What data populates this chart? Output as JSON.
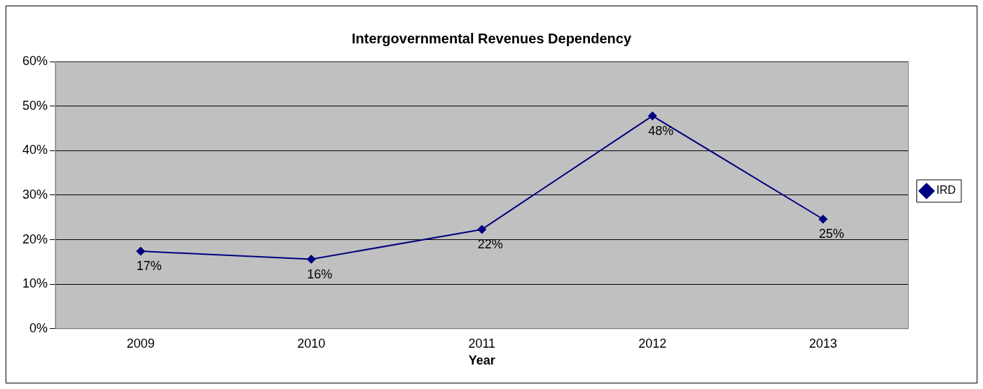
{
  "chart_data": {
    "type": "line",
    "title": "Intergovernmental Revenues Dependency",
    "xlabel": "Year",
    "categories": [
      "2009",
      "2010",
      "2011",
      "2012",
      "2013"
    ],
    "series": [
      {
        "name": "IRD",
        "color": "#000080",
        "values": [
          17.4,
          15.6,
          22.3,
          47.8,
          24.6
        ],
        "value_labels": [
          "17%",
          "16%",
          "22%",
          "48%",
          "25%"
        ]
      }
    ],
    "ylim": [
      0,
      60
    ],
    "yticks": [
      {
        "value": 0,
        "label": "0%"
      },
      {
        "value": 10,
        "label": "10%"
      },
      {
        "value": 20,
        "label": "20%"
      },
      {
        "value": 30,
        "label": "30%"
      },
      {
        "value": 40,
        "label": "40%"
      },
      {
        "value": 50,
        "label": "50%"
      },
      {
        "value": 60,
        "label": "60%"
      }
    ],
    "grid": "y",
    "legend": "right",
    "marker": "diamond",
    "line_style": "solid"
  }
}
